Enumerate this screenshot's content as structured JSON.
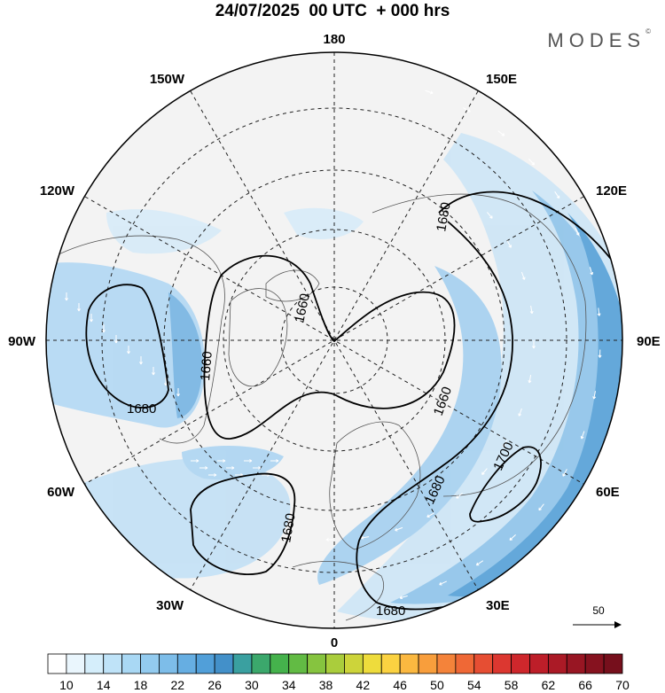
{
  "title": "24/07/2025  00 UTC  + 000 hrs",
  "brand": "MODES",
  "brand_mark": "©",
  "longitude_labels": {
    "top": "180",
    "bottom": "0",
    "left": "90W",
    "right": "90E",
    "upper_left": "150W",
    "upper_right": "150E",
    "mid_upper_left": "120W",
    "mid_upper_right": "120E",
    "mid_lower_left": "60W",
    "mid_lower_right": "60E",
    "lower_left": "30W",
    "lower_right": "30E"
  },
  "contour_labels": [
    "1660",
    "1660",
    "1660",
    "1680",
    "1680",
    "1680",
    "1680",
    "1680",
    "1700"
  ],
  "reference_vector": {
    "label": "50"
  },
  "colorbar": {
    "tick_labels": [
      "10",
      "14",
      "18",
      "22",
      "26",
      "30",
      "34",
      "38",
      "42",
      "46",
      "50",
      "54",
      "58",
      "62",
      "66",
      "70"
    ],
    "colors": [
      "#ffffff",
      "#eaf6fd",
      "#d5eefb",
      "#bfe3f8",
      "#a9d8f4",
      "#93cbef",
      "#7dbde9",
      "#66aee2",
      "#519fd9",
      "#4390c9",
      "#3aa0a0",
      "#3ba86c",
      "#45b24c",
      "#62bb44",
      "#86c43f",
      "#aacd3c",
      "#cdd43a",
      "#eedc3c",
      "#fbd241",
      "#fbb840",
      "#f89e3c",
      "#f4833a",
      "#ef6836",
      "#e64e33",
      "#dc3730",
      "#ce272c",
      "#bd1e29",
      "#ab1a26",
      "#981623",
      "#86121f",
      "#760f1c"
    ]
  },
  "colors": {
    "jet_light": "#cfe6f6",
    "jet_mid": "#93c6ea",
    "jet_strong": "#5ca4d8",
    "land": "#f2f2f2",
    "grid": "#222222"
  }
}
